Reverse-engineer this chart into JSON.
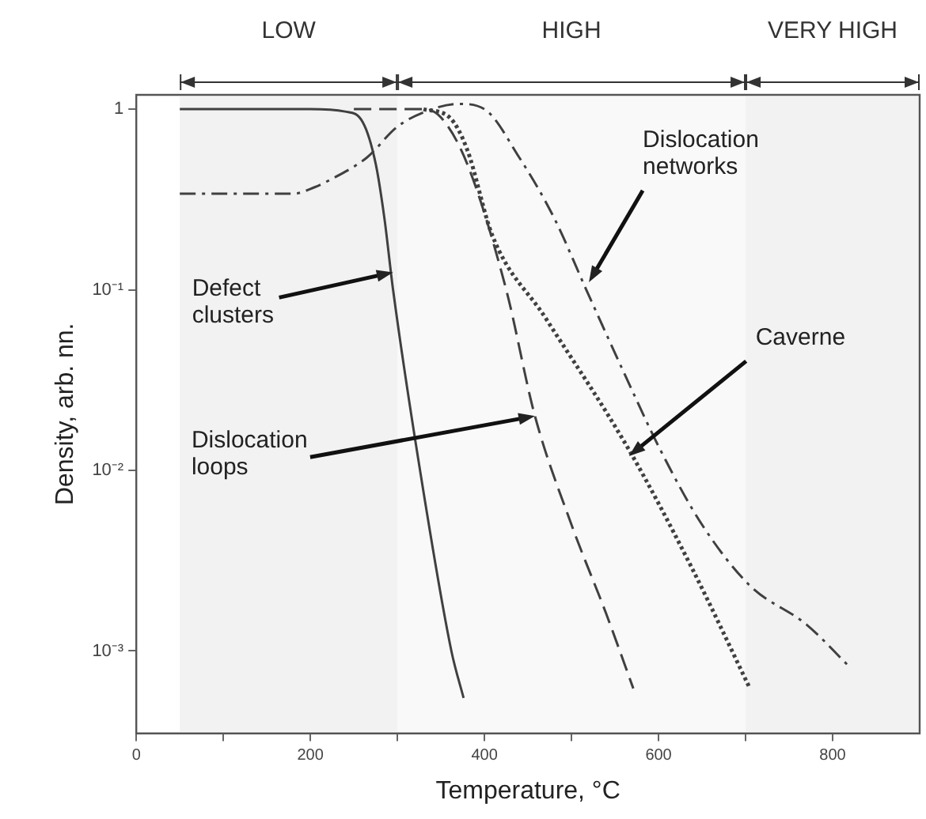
{
  "chart_data": {
    "type": "line",
    "xlabel": "Temperature, °C",
    "ylabel": "Density, arb. nn.",
    "log": "y",
    "grid": false,
    "legend": false,
    "marker": "none",
    "xlim": [
      0,
      900
    ],
    "xticks": [
      0,
      {
        "value": 100,
        "label": null
      },
      200,
      {
        "value": 300,
        "label": null
      },
      400,
      {
        "value": 500,
        "label": null
      },
      600,
      {
        "value": 700,
        "label": null
      },
      800
    ],
    "ylim": [
      0.00035,
      1.2
    ],
    "yticks": [
      {
        "value": 0.001,
        "label": "10⁻³"
      },
      {
        "value": 0.01,
        "label": "10⁻²"
      },
      {
        "value": 0.1,
        "label": "10⁻¹"
      },
      1
    ],
    "series": [
      {
        "color": "#404040",
        "line_style": "solid",
        "x": [
          50,
          200,
          240,
          260,
          275,
          285,
          295,
          326,
          362,
          376
        ],
        "values": [
          1,
          1,
          0.97,
          0.85,
          0.5,
          0.25,
          0.1,
          0.01,
          0.001,
          0.00055
        ]
      },
      {
        "color": "#404040",
        "line_style": "dashed",
        "x": [
          250,
          330,
          350,
          380,
          425,
          458,
          500,
          540,
          571
        ],
        "values": [
          1,
          1,
          0.9,
          0.5,
          0.1,
          0.02,
          0.005,
          0.0016,
          0.00062
        ]
      },
      {
        "color": "#404040",
        "line_style": "dotted",
        "x": [
          330,
          360,
          380,
          409,
          470,
          566,
          638,
          705
        ],
        "values": [
          1,
          0.9,
          0.6,
          0.2,
          0.07,
          0.013,
          0.0029,
          0.00062
        ]
      },
      {
        "color": "#404040",
        "line_style": "dashdot",
        "x": [
          50,
          180,
          205,
          220,
          265,
          300,
          340,
          370,
          400,
          440,
          480,
          517,
          560,
          602,
          650,
          705,
          770,
          818
        ],
        "values": [
          0.34,
          0.34,
          0.37,
          0.4,
          0.54,
          0.8,
          1.0,
          1.07,
          1.0,
          0.54,
          0.25,
          0.1,
          0.035,
          0.013,
          0.005,
          0.0023,
          0.0014,
          0.00083
        ]
      }
    ],
    "bands": [
      {
        "axis": "x",
        "from": 50,
        "to": 300,
        "label": "LOW",
        "color": "#f2f2f2"
      },
      {
        "axis": "x",
        "from": 300,
        "to": 700,
        "label": "HIGH",
        "color": "#f9f9f9"
      },
      {
        "axis": "x",
        "from": 700,
        "to": 900,
        "label": "VERY HIGH",
        "color": "#f2f2f2"
      }
    ],
    "annotations": [
      {
        "text": "Defect\nclusters",
        "x": 295,
        "y": 0.125
      },
      {
        "text": "Dislocation\nloops",
        "x": 458,
        "y": 0.02
      },
      {
        "text": "Dislocation\nnetworks",
        "x": 520,
        "y": 0.11
      },
      {
        "text": "Caverne",
        "x": 566,
        "y": 0.012
      }
    ]
  }
}
